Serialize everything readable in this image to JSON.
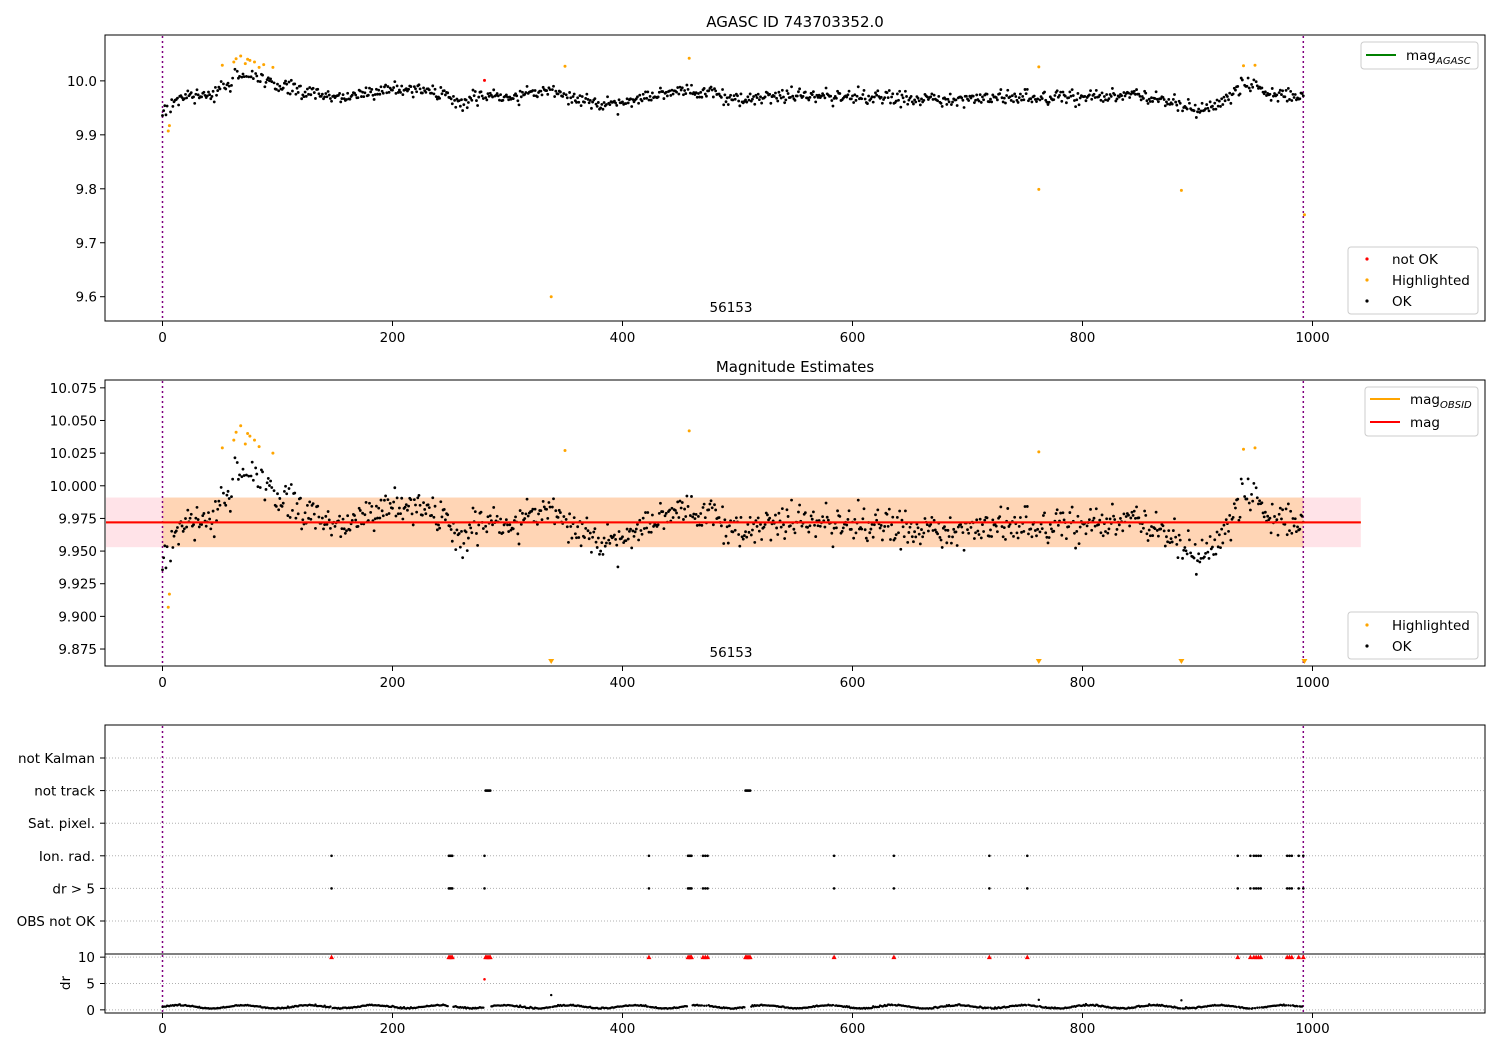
{
  "chart_data": [
    {
      "type": "scatter",
      "title": "AGASC ID 743703352.0",
      "annotation": "56153",
      "xlim": [
        -50,
        1150
      ],
      "ylim": [
        9.555,
        10.085
      ],
      "xticks": [
        0,
        200,
        400,
        600,
        800,
        1000
      ],
      "yticks": [
        9.6,
        9.7,
        9.8,
        9.9,
        10.0
      ],
      "ytick_labels": [
        "9.6",
        "9.7",
        "9.8",
        "9.9",
        "10.0"
      ],
      "vlines": [
        0,
        992
      ],
      "legend_line": {
        "label": "mag",
        "subscript": "AGASC",
        "color": "#008000"
      },
      "legend_points": [
        {
          "label": "not OK",
          "color": "#ff0000"
        },
        {
          "label": "Highlighted",
          "color": "#ffa500"
        },
        {
          "label": "OK",
          "color": "#000000"
        }
      ],
      "ok_trend": {
        "x": [
          0,
          10,
          20,
          40,
          55,
          70,
          85,
          100,
          150,
          200,
          240,
          260,
          280,
          300,
          340,
          360,
          380,
          400,
          430,
          460,
          500,
          550,
          600,
          650,
          700,
          750,
          800,
          850,
          880,
          900,
          920,
          930,
          940,
          950,
          960,
          990
        ],
        "y": [
          9.945,
          9.96,
          9.97,
          9.975,
          9.99,
          10.015,
          10.005,
          9.99,
          9.97,
          9.985,
          9.98,
          9.96,
          9.975,
          9.97,
          9.98,
          9.965,
          9.955,
          9.96,
          9.975,
          9.985,
          9.965,
          9.975,
          9.97,
          9.965,
          9.965,
          9.97,
          9.97,
          9.975,
          9.96,
          9.945,
          9.96,
          9.975,
          10.0,
          9.995,
          9.975,
          9.975
        ]
      },
      "highlighted": {
        "x": [
          5,
          6,
          52,
          62,
          64,
          68,
          72,
          74,
          76,
          80,
          84,
          88,
          96,
          350,
          458,
          762,
          940,
          950,
          338,
          762,
          886,
          993
        ],
        "y": [
          9.907,
          9.917,
          10.029,
          10.035,
          10.041,
          10.046,
          10.032,
          10.04,
          10.038,
          10.035,
          10.025,
          10.03,
          10.025,
          10.027,
          10.042,
          10.026,
          10.028,
          10.029,
          9.6,
          9.799,
          9.797,
          9.752
        ]
      },
      "not_ok": {
        "x": [
          280
        ],
        "y": [
          10.001
        ]
      }
    },
    {
      "type": "scatter",
      "title": "Magnitude Estimates",
      "annotation": "56153",
      "xlim": [
        -50,
        1150
      ],
      "ylim": [
        9.862,
        10.081
      ],
      "xticks": [
        0,
        200,
        400,
        600,
        800,
        1000
      ],
      "yticks": [
        9.875,
        9.9,
        9.925,
        9.95,
        9.975,
        10.0,
        10.025,
        10.05,
        10.075
      ],
      "ytick_labels": [
        "9.875",
        "9.900",
        "9.925",
        "9.950",
        "9.975",
        "10.000",
        "10.025",
        "10.050",
        "10.075"
      ],
      "vlines": [
        0,
        992
      ],
      "mag": 9.972,
      "mag_band": [
        9.953,
        9.991
      ],
      "mag_obsid_band": [
        9.953,
        9.991
      ],
      "band_x_range": [
        -50,
        1042
      ],
      "legend_lines": [
        {
          "label": "mag",
          "subscript": "OBSID",
          "color": "#ffa500"
        },
        {
          "label": "mag",
          "subscript": "",
          "color": "#ff0000"
        }
      ],
      "legend_points": [
        {
          "label": "Highlighted",
          "color": "#ffa500"
        },
        {
          "label": "OK",
          "color": "#000000"
        }
      ],
      "highlighted": {
        "x": [
          5,
          6,
          52,
          62,
          64,
          68,
          72,
          74,
          76,
          80,
          84,
          96,
          350,
          458,
          762,
          940,
          950
        ],
        "y": [
          9.907,
          9.917,
          10.029,
          10.035,
          10.041,
          10.046,
          10.032,
          10.04,
          10.038,
          10.035,
          10.03,
          10.025,
          10.027,
          10.042,
          10.026,
          10.028,
          10.029
        ]
      },
      "clipped_low_x": [
        338,
        762,
        886,
        993
      ]
    },
    {
      "type": "scatter",
      "title": "",
      "xlim": [
        -50,
        1150
      ],
      "xticks": [
        0,
        200,
        400,
        600,
        800,
        1000
      ],
      "vlines": [
        0,
        992
      ],
      "flag_labels": [
        "not Kalman",
        "not track",
        "Sat. pixel.",
        "Ion. rad.",
        "dr > 5",
        "OBS not OK"
      ],
      "flags": {
        "not track": [
          281,
          282,
          283,
          284,
          285,
          507,
          508,
          509,
          510,
          511
        ],
        "Ion. rad.": [
          147,
          249,
          250,
          251,
          252,
          280,
          423,
          457,
          458,
          459,
          460,
          470,
          472,
          474,
          584,
          636,
          719,
          752,
          935,
          946,
          949,
          951,
          953,
          955,
          978,
          980,
          982,
          988,
          992
        ],
        "dr > 5": [
          147,
          249,
          250,
          251,
          252,
          280,
          423,
          457,
          458,
          459,
          460,
          470,
          472,
          474,
          584,
          636,
          719,
          752,
          935,
          946,
          949,
          951,
          953,
          955,
          978,
          980,
          982,
          988,
          992
        ]
      },
      "dr": {
        "ylabel": "dr",
        "yticks": [
          0,
          5,
          10
        ],
        "ylim": [
          -0.6,
          10.6
        ],
        "clip_value": 10,
        "clipped_x": [
          147,
          249,
          250,
          251,
          252,
          281,
          282,
          283,
          284,
          285,
          423,
          457,
          458,
          459,
          460,
          470,
          472,
          474,
          507,
          508,
          509,
          510,
          511,
          584,
          636,
          719,
          752,
          935,
          946,
          949,
          951,
          953,
          955,
          978,
          980,
          982,
          988,
          992
        ],
        "red_points": {
          "x": [
            280
          ],
          "y": [
            5.8
          ]
        },
        "outliers": {
          "x": [
            338,
            762,
            886
          ],
          "y": [
            2.8,
            1.9,
            1.8
          ]
        }
      }
    }
  ]
}
